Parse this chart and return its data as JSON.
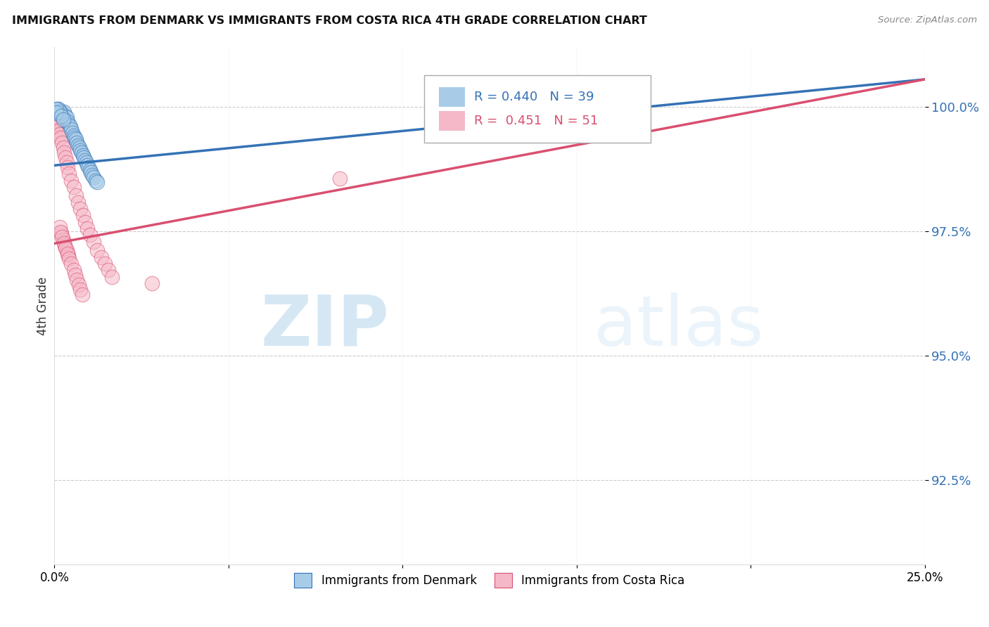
{
  "title": "IMMIGRANTS FROM DENMARK VS IMMIGRANTS FROM COSTA RICA 4TH GRADE CORRELATION CHART",
  "source": "Source: ZipAtlas.com",
  "ylabel": "4th Grade",
  "ytick_labels": [
    "92.5%",
    "95.0%",
    "97.5%",
    "100.0%"
  ],
  "ytick_values": [
    92.5,
    95.0,
    97.5,
    100.0
  ],
  "xlim": [
    0.0,
    25.0
  ],
  "ylim": [
    90.8,
    101.2
  ],
  "legend_denmark": "Immigrants from Denmark",
  "legend_costa_rica": "Immigrants from Costa Rica",
  "R_denmark": 0.44,
  "N_denmark": 39,
  "R_costa_rica": 0.451,
  "N_costa_rica": 51,
  "color_denmark": "#a8cce8",
  "color_costa_rica": "#f5b8c8",
  "line_color_denmark": "#3472b5",
  "line_color_costa_rica": "#d94f70",
  "watermark_zip": "ZIP",
  "watermark_atlas": "atlas",
  "dk_line_x0": 0.0,
  "dk_line_y0": 98.82,
  "dk_line_x1": 25.0,
  "dk_line_y1": 100.55,
  "cr_line_x0": 0.0,
  "cr_line_y0": 97.25,
  "cr_line_x1": 25.0,
  "cr_line_y1": 100.55,
  "denmark_x": [
    0.18,
    0.22,
    0.28,
    0.32,
    0.35,
    0.38,
    0.42,
    0.45,
    0.48,
    0.52,
    0.55,
    0.58,
    0.62,
    0.65,
    0.68,
    0.72,
    0.75,
    0.78,
    0.82,
    0.85,
    0.88,
    0.92,
    0.95,
    0.98,
    1.02,
    1.05,
    1.08,
    1.12,
    1.18,
    1.22,
    0.08,
    0.1,
    0.12,
    0.15,
    0.05,
    0.06,
    0.2,
    0.25,
    15.2
  ],
  "denmark_y": [
    99.85,
    99.88,
    99.9,
    99.82,
    99.78,
    99.7,
    99.65,
    99.6,
    99.55,
    99.48,
    99.42,
    99.38,
    99.35,
    99.28,
    99.22,
    99.18,
    99.12,
    99.08,
    99.02,
    98.98,
    98.92,
    98.88,
    98.82,
    98.78,
    98.72,
    98.68,
    98.62,
    98.58,
    98.52,
    98.48,
    99.92,
    99.95,
    99.95,
    99.9,
    99.95,
    99.88,
    99.82,
    99.75,
    100.0
  ],
  "costa_rica_x": [
    0.05,
    0.06,
    0.07,
    0.08,
    0.1,
    0.12,
    0.15,
    0.18,
    0.22,
    0.25,
    0.28,
    0.32,
    0.35,
    0.38,
    0.42,
    0.48,
    0.55,
    0.62,
    0.68,
    0.75,
    0.82,
    0.88,
    0.95,
    1.02,
    1.12,
    1.22,
    1.35,
    1.45,
    1.55,
    1.65,
    0.2,
    0.25,
    0.3,
    0.35,
    0.4,
    0.15,
    0.18,
    0.22,
    0.28,
    0.32,
    0.38,
    0.42,
    0.48,
    0.55,
    0.6,
    0.65,
    0.7,
    0.75,
    0.8,
    8.2,
    2.8
  ],
  "costa_rica_y": [
    99.8,
    99.75,
    99.72,
    99.65,
    99.6,
    99.52,
    99.45,
    99.38,
    99.28,
    99.18,
    99.08,
    98.98,
    98.88,
    98.78,
    98.65,
    98.52,
    98.38,
    98.22,
    98.08,
    97.95,
    97.82,
    97.68,
    97.55,
    97.42,
    97.28,
    97.12,
    96.98,
    96.85,
    96.72,
    96.58,
    97.45,
    97.32,
    97.22,
    97.12,
    97.02,
    97.58,
    97.48,
    97.38,
    97.25,
    97.15,
    97.05,
    96.95,
    96.85,
    96.72,
    96.62,
    96.52,
    96.42,
    96.32,
    96.22,
    98.55,
    96.45
  ]
}
